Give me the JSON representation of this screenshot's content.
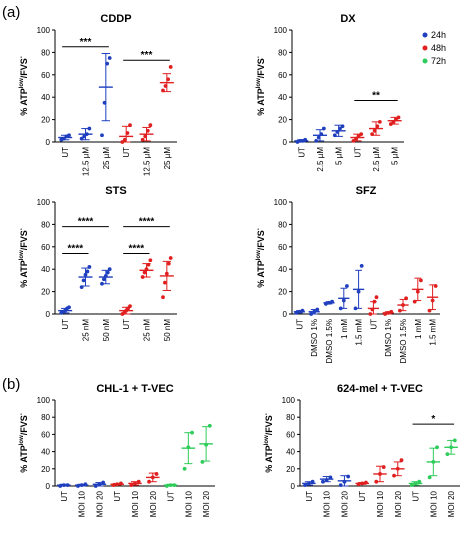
{
  "panel_labels": [
    "(a)",
    "(b)"
  ],
  "legend": [
    {
      "label": "24h",
      "color": "#1f3fbf"
    },
    {
      "label": "48h",
      "color": "#e02020"
    },
    {
      "label": "72h",
      "color": "#2ecc5a"
    }
  ],
  "y_label": "% ATP",
  "y_label_sup": "low",
  "y_label_tail": "/FVS",
  "y_label_tail_sup": "-",
  "chart_data": [
    {
      "type": "scatter",
      "title": "CDDP",
      "ylim": [
        0,
        100
      ],
      "yticks": [
        "0",
        "20",
        "40",
        "60",
        "80",
        "100"
      ],
      "categories": [
        "UT",
        "12.5 µM",
        "25 µM",
        "UT",
        "12.5 µM",
        "25 µM"
      ],
      "groups": [
        {
          "color": "#1f3fbf",
          "mean": 4,
          "sd": 2,
          "points": [
            2,
            3,
            5,
            6
          ]
        },
        {
          "color": "#1f3fbf",
          "mean": 7,
          "sd": 5,
          "points": [
            3,
            5,
            7,
            12
          ]
        },
        {
          "color": "#1f3fbf",
          "mean": 49,
          "sd": 30,
          "points": [
            6,
            35,
            70,
            75
          ]
        },
        {
          "color": "#e02020",
          "mean": 5,
          "sd": 9,
          "points": [
            0,
            2,
            8,
            15
          ]
        },
        {
          "color": "#e02020",
          "mean": 7,
          "sd": 6,
          "points": [
            2,
            5,
            10,
            15
          ]
        },
        {
          "color": "#e02020",
          "mean": 53,
          "sd": 8,
          "points": [
            46,
            50,
            56,
            67
          ]
        }
      ],
      "significance": [
        {
          "from": 0,
          "to": 2,
          "level": 85,
          "label": "***"
        },
        {
          "from": 3,
          "to": 5,
          "level": 73,
          "label": "***"
        }
      ]
    },
    {
      "type": "scatter",
      "title": "DX",
      "ylim": [
        0,
        100
      ],
      "yticks": [
        "0",
        "20",
        "40",
        "60",
        "80",
        "100"
      ],
      "categories": [
        "UT",
        "2.5 µM",
        "5 µM",
        "UT",
        "2.5 µM",
        "5 µM"
      ],
      "groups": [
        {
          "color": "#1f3fbf",
          "mean": 1,
          "sd": 1,
          "points": [
            0,
            1,
            1,
            2
          ]
        },
        {
          "color": "#1f3fbf",
          "mean": 6,
          "sd": 5,
          "points": [
            1,
            4,
            7,
            12
          ]
        },
        {
          "color": "#1f3fbf",
          "mean": 10,
          "sd": 5,
          "points": [
            6,
            9,
            12,
            14
          ]
        },
        {
          "color": "#e02020",
          "mean": 4,
          "sd": 3,
          "points": [
            1,
            3,
            5,
            7
          ]
        },
        {
          "color": "#e02020",
          "mean": 12,
          "sd": 6,
          "points": [
            7,
            10,
            14,
            18
          ]
        },
        {
          "color": "#e02020",
          "mean": 19,
          "sd": 3,
          "points": [
            16,
            18,
            20,
            22
          ]
        }
      ],
      "significance": [
        {
          "from": 3,
          "to": 5,
          "level": 37,
          "label": "**"
        }
      ]
    },
    {
      "type": "scatter",
      "title": "STS",
      "ylim": [
        0,
        100
      ],
      "yticks": [
        "0",
        "20",
        "40",
        "60",
        "80",
        "100"
      ],
      "categories": [
        "UT",
        "25 nM",
        "50 nM",
        "UT",
        "25 nM",
        "50 nM"
      ],
      "groups": [
        {
          "color": "#1f3fbf",
          "mean": 3,
          "sd": 2,
          "points": [
            1,
            2,
            3,
            5,
            6
          ]
        },
        {
          "color": "#1f3fbf",
          "mean": 33,
          "sd": 8,
          "points": [
            24,
            30,
            35,
            38,
            42
          ]
        },
        {
          "color": "#1f3fbf",
          "mean": 33,
          "sd": 6,
          "points": [
            27,
            31,
            34,
            37,
            40
          ]
        },
        {
          "color": "#e02020",
          "mean": 3,
          "sd": 3,
          "points": [
            0,
            1,
            3,
            5,
            7
          ]
        },
        {
          "color": "#e02020",
          "mean": 39,
          "sd": 6,
          "points": [
            33,
            37,
            40,
            44,
            48
          ]
        },
        {
          "color": "#e02020",
          "mean": 34,
          "sd": 13,
          "points": [
            15,
            28,
            36,
            45,
            50
          ]
        }
      ],
      "significance": [
        {
          "from": 0,
          "to": 2,
          "level": 78,
          "label": "****"
        },
        {
          "from": 0,
          "to": 1,
          "level": 54,
          "label": "****"
        },
        {
          "from": 3,
          "to": 5,
          "level": 78,
          "label": "****"
        },
        {
          "from": 3,
          "to": 4,
          "level": 54,
          "label": "****"
        }
      ]
    },
    {
      "type": "scatter",
      "title": "SFZ",
      "ylim": [
        0,
        100
      ],
      "yticks": [
        "0",
        "20",
        "40",
        "60",
        "80",
        "100"
      ],
      "categories": [
        "UT",
        "DMSO 1%",
        "DMSO 1.5%",
        "1 mM",
        "1.5 mM",
        "UT",
        "DMSO 1%",
        "DMSO 1.5%",
        "1 mM",
        "1.5 mM"
      ],
      "groups": [
        {
          "color": "#1f3fbf",
          "mean": 2,
          "sd": 1,
          "points": [
            1,
            2,
            3
          ]
        },
        {
          "color": "#1f3fbf",
          "mean": 2,
          "sd": 2,
          "points": [
            0,
            2,
            4
          ]
        },
        {
          "color": "#1f3fbf",
          "mean": 10,
          "sd": 1,
          "points": [
            9,
            10,
            11
          ]
        },
        {
          "color": "#1f3fbf",
          "mean": 14,
          "sd": 9,
          "points": [
            5,
            12,
            25
          ]
        },
        {
          "color": "#1f3fbf",
          "mean": 22,
          "sd": 17,
          "points": [
            5,
            20,
            43
          ]
        },
        {
          "color": "#e02020",
          "mean": 5,
          "sd": 6,
          "points": [
            0,
            4,
            11,
            15
          ]
        },
        {
          "color": "#e02020",
          "mean": 1,
          "sd": 1,
          "points": [
            0,
            1,
            2
          ]
        },
        {
          "color": "#e02020",
          "mean": 8,
          "sd": 5,
          "points": [
            3,
            8,
            14
          ]
        },
        {
          "color": "#e02020",
          "mean": 22,
          "sd": 10,
          "points": [
            11,
            20,
            30
          ]
        },
        {
          "color": "#e02020",
          "mean": 15,
          "sd": 11,
          "points": [
            3,
            12,
            25
          ]
        }
      ],
      "significance": []
    },
    {
      "type": "scatter",
      "title": "CHL-1 + T-VEC",
      "ylim": [
        0,
        100
      ],
      "yticks": [
        "0",
        "20",
        "40",
        "60",
        "80",
        "100"
      ],
      "categories": [
        "UT",
        "MOI 10",
        "MOI 20",
        "UT",
        "MOI 10",
        "MOI 20",
        "UT",
        "MOI 10",
        "MOI 20"
      ],
      "groups": [
        {
          "color": "#1f3fbf",
          "mean": 1,
          "sd": 1,
          "points": [
            0,
            1,
            1
          ]
        },
        {
          "color": "#1f3fbf",
          "mean": 1,
          "sd": 1,
          "points": [
            0,
            1,
            2
          ]
        },
        {
          "color": "#1f3fbf",
          "mean": 2,
          "sd": 2,
          "points": [
            0,
            2,
            4
          ]
        },
        {
          "color": "#e02020",
          "mean": 2,
          "sd": 1,
          "points": [
            1,
            2,
            3
          ]
        },
        {
          "color": "#e02020",
          "mean": 3,
          "sd": 2,
          "points": [
            1,
            3,
            5
          ]
        },
        {
          "color": "#e02020",
          "mean": 10,
          "sd": 5,
          "points": [
            5,
            10,
            14
          ]
        },
        {
          "color": "#2ecc5a",
          "mean": 1,
          "sd": 1,
          "points": [
            0,
            1,
            1
          ]
        },
        {
          "color": "#2ecc5a",
          "mean": 44,
          "sd": 18,
          "points": [
            20,
            45,
            62
          ]
        },
        {
          "color": "#2ecc5a",
          "mean": 49,
          "sd": 20,
          "points": [
            28,
            48,
            70
          ]
        }
      ],
      "significance": []
    },
    {
      "type": "scatter",
      "title": "624-mel + T-VEC",
      "ylim": [
        0,
        100
      ],
      "yticks": [
        "0",
        "20",
        "40",
        "60",
        "80",
        "100"
      ],
      "categories": [
        "UT",
        "MOI 10",
        "MOI 20",
        "UT",
        "MOI 10",
        "MOI 20",
        "UT",
        "MOI 10",
        "MOI 20"
      ],
      "groups": [
        {
          "color": "#1f3fbf",
          "mean": 3,
          "sd": 2,
          "points": [
            1,
            3,
            5
          ]
        },
        {
          "color": "#1f3fbf",
          "mean": 8,
          "sd": 3,
          "points": [
            5,
            7,
            10
          ]
        },
        {
          "color": "#1f3fbf",
          "mean": 6,
          "sd": 6,
          "points": [
            1,
            5,
            11
          ]
        },
        {
          "color": "#e02020",
          "mean": 3,
          "sd": 1,
          "points": [
            2,
            3,
            4
          ]
        },
        {
          "color": "#e02020",
          "mean": 14,
          "sd": 9,
          "points": [
            5,
            14,
            22
          ]
        },
        {
          "color": "#e02020",
          "mean": 20,
          "sd": 8,
          "points": [
            12,
            20,
            30
          ]
        },
        {
          "color": "#2ecc5a",
          "mean": 3,
          "sd": 2,
          "points": [
            1,
            3,
            5
          ]
        },
        {
          "color": "#2ecc5a",
          "mean": 28,
          "sd": 16,
          "points": [
            10,
            28,
            45
          ]
        },
        {
          "color": "#2ecc5a",
          "mean": 45,
          "sd": 8,
          "points": [
            37,
            45,
            53
          ]
        }
      ],
      "significance": [
        {
          "from": 6,
          "to": 8,
          "level": 72,
          "label": "*"
        }
      ]
    }
  ]
}
